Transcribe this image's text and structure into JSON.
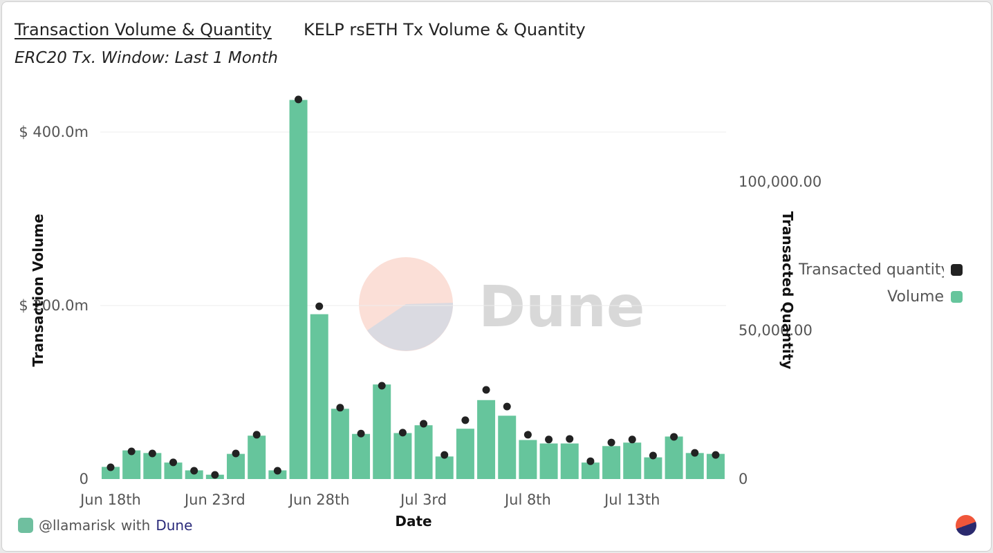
{
  "header": {
    "title": "Transaction Volume & Quantity",
    "subtitle": "KELP rsETH Tx Volume & Quantity",
    "description": "ERC20 Tx. Window: Last 1 Month"
  },
  "watermark": "Dune",
  "footer": {
    "user": "@llamarisk",
    "with": "with",
    "brand": "Dune"
  },
  "colors": {
    "volume": "#66c59c",
    "quantity": "#222222"
  },
  "chart_data": {
    "type": "bar",
    "title": "Transaction Volume & Quantity",
    "xlabel": "Date",
    "ylabel": "Transaction Volume",
    "y2label": "Transacted Quantity",
    "ylim": [
      0,
      440
    ],
    "y2lim": [
      0,
      128000
    ],
    "yticks": [
      {
        "v": 0,
        "label": "0"
      },
      {
        "v": 200,
        "label": "$ 200.0m"
      },
      {
        "v": 400,
        "label": "$ 400.0m"
      }
    ],
    "y2ticks": [
      {
        "v": 0,
        "label": "0"
      },
      {
        "v": 50000,
        "label": "50,000.00"
      },
      {
        "v": 100000,
        "label": "100,000.00"
      }
    ],
    "xticks": [
      {
        "i": 0,
        "label": "Jun 18th"
      },
      {
        "i": 5,
        "label": "Jun 23rd"
      },
      {
        "i": 10,
        "label": "Jun 28th"
      },
      {
        "i": 15,
        "label": "Jul 3rd"
      },
      {
        "i": 20,
        "label": "Jul 8th"
      },
      {
        "i": 25,
        "label": "Jul 13th"
      }
    ],
    "categories": [
      "Jun 18",
      "Jun 19",
      "Jun 20",
      "Jun 21",
      "Jun 22",
      "Jun 23",
      "Jun 24",
      "Jun 25",
      "Jun 26",
      "Jun 27",
      "Jun 28",
      "Jun 29",
      "Jun 30",
      "Jul 1",
      "Jul 2",
      "Jul 3",
      "Jul 4",
      "Jul 5",
      "Jul 6",
      "Jul 7",
      "Jul 8",
      "Jul 9",
      "Jul 10",
      "Jul 11",
      "Jul 12",
      "Jul 13",
      "Jul 14",
      "Jul 15",
      "Jul 16",
      "Jul 17"
    ],
    "series": [
      {
        "name": "Volume",
        "type": "bar",
        "unit": "$m",
        "values": [
          14,
          33,
          30,
          19,
          10,
          5,
          29,
          50,
          10,
          437,
          190,
          81,
          52,
          109,
          53,
          62,
          26,
          58,
          91,
          73,
          45,
          41,
          41,
          19,
          38,
          42,
          25,
          49,
          30,
          29
        ]
      },
      {
        "name": "Transacted quantity",
        "type": "scatter",
        "values": [
          3950,
          9300,
          8600,
          5600,
          2800,
          1400,
          8600,
          14900,
          2800,
          127700,
          58100,
          24000,
          15300,
          31400,
          15600,
          18600,
          8100,
          19800,
          30000,
          24400,
          14900,
          13300,
          13500,
          6000,
          12300,
          13300,
          7900,
          14200,
          8800,
          8100
        ]
      }
    ],
    "legend": "right",
    "grid": true
  }
}
